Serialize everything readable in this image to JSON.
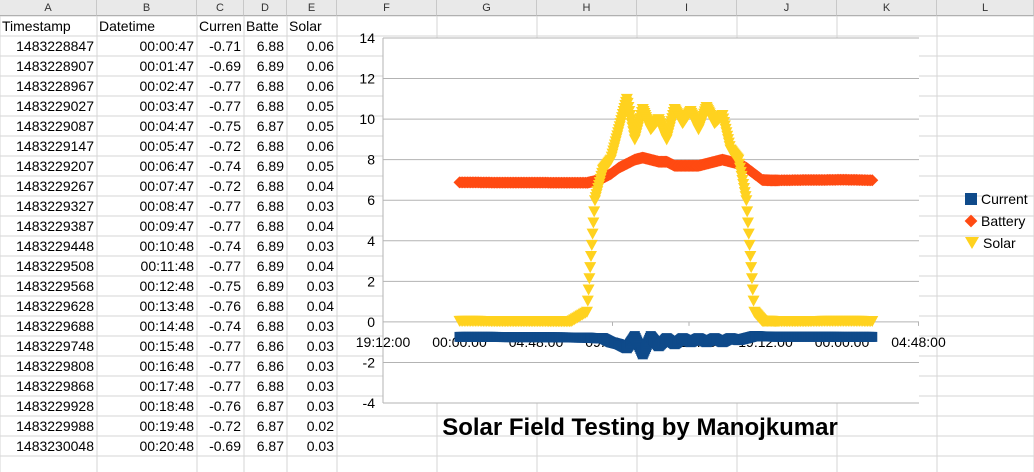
{
  "spreadsheet": {
    "column_letters": [
      "A",
      "B",
      "C",
      "D",
      "E",
      "F",
      "G",
      "H",
      "I",
      "J",
      "K",
      "L"
    ],
    "headers": [
      "Timestamp",
      "Datetime",
      "Curren",
      "Batte",
      "Solar"
    ],
    "rows": [
      [
        "1483228847",
        "00:00:47",
        "-0.71",
        "6.88",
        "0.06"
      ],
      [
        "1483228907",
        "00:01:47",
        "-0.69",
        "6.89",
        "0.06"
      ],
      [
        "1483228967",
        "00:02:47",
        "-0.77",
        "6.88",
        "0.06"
      ],
      [
        "1483229027",
        "00:03:47",
        "-0.77",
        "6.88",
        "0.05"
      ],
      [
        "1483229087",
        "00:04:47",
        "-0.75",
        "6.87",
        "0.05"
      ],
      [
        "1483229147",
        "00:05:47",
        "-0.72",
        "6.88",
        "0.06"
      ],
      [
        "1483229207",
        "00:06:47",
        "-0.74",
        "6.89",
        "0.05"
      ],
      [
        "1483229267",
        "00:07:47",
        "-0.72",
        "6.88",
        "0.04"
      ],
      [
        "1483229327",
        "00:08:47",
        "-0.77",
        "6.88",
        "0.03"
      ],
      [
        "1483229387",
        "00:09:47",
        "-0.77",
        "6.88",
        "0.04"
      ],
      [
        "1483229448",
        "00:10:48",
        "-0.74",
        "6.89",
        "0.03"
      ],
      [
        "1483229508",
        "00:11:48",
        "-0.77",
        "6.89",
        "0.04"
      ],
      [
        "1483229568",
        "00:12:48",
        "-0.75",
        "6.89",
        "0.03"
      ],
      [
        "1483229628",
        "00:13:48",
        "-0.76",
        "6.88",
        "0.04"
      ],
      [
        "1483229688",
        "00:14:48",
        "-0.74",
        "6.88",
        "0.03"
      ],
      [
        "1483229748",
        "00:15:48",
        "-0.77",
        "6.86",
        "0.03"
      ],
      [
        "1483229808",
        "00:16:48",
        "-0.77",
        "6.86",
        "0.03"
      ],
      [
        "1483229868",
        "00:17:48",
        "-0.77",
        "6.88",
        "0.03"
      ],
      [
        "1483229928",
        "00:18:48",
        "-0.76",
        "6.87",
        "0.03"
      ],
      [
        "1483229988",
        "00:19:48",
        "-0.72",
        "6.87",
        "0.02"
      ],
      [
        "1483230048",
        "00:20:48",
        "-0.69",
        "6.87",
        "0.03"
      ]
    ]
  },
  "colors": {
    "current": "#0f4a8a",
    "battery": "#ff4a12",
    "solar": "#ffd21f",
    "axis": "#b3b3b3",
    "grid": "#b3b3b3"
  },
  "chart_data": {
    "type": "scatter",
    "title": "Solar Field Testing by Manojkumar",
    "xlabel": "",
    "ylabel": "",
    "ylim": [
      -4,
      14
    ],
    "y_ticks": [
      "14",
      "12",
      "10",
      "8",
      "6",
      "4",
      "2",
      "0",
      "-2",
      "-4"
    ],
    "x_ticks": [
      "19:12:00",
      "00:00:00",
      "04:48:00",
      "09:36:00",
      "14:24:00",
      "19:12:00",
      "00:00:00",
      "04:48:00"
    ],
    "grid": "horizontal",
    "legend_position": "right",
    "series": [
      {
        "name": "Current",
        "marker": "square",
        "x_hours": [
          0.0,
          1,
          2,
          3,
          4,
          5,
          6,
          7,
          8,
          8.5,
          9,
          9.5,
          10,
          10.5,
          11,
          11.5,
          12,
          12.5,
          13,
          13.5,
          14,
          14.5,
          15,
          15.5,
          16,
          16.5,
          17,
          17.5,
          18,
          18.5,
          19,
          19.5,
          20,
          21,
          22,
          23,
          24,
          25,
          26
        ],
        "values": [
          -0.74,
          -0.74,
          -0.74,
          -0.75,
          -0.75,
          -0.75,
          -0.76,
          -0.77,
          -0.78,
          -0.8,
          -0.8,
          -1.0,
          -1.1,
          -1.3,
          -0.7,
          -1.6,
          -0.7,
          -1.2,
          -0.8,
          -1.1,
          -0.8,
          -1.0,
          -0.8,
          -1.0,
          -0.8,
          -1.0,
          -0.8,
          -0.9,
          -0.8,
          -0.7,
          -0.72,
          -0.72,
          -0.73,
          -0.73,
          -0.73,
          -0.73,
          -0.74,
          -0.74,
          -0.74
        ]
      },
      {
        "name": "Battery",
        "marker": "diamond",
        "x_hours": [
          0.0,
          1,
          2,
          3,
          4,
          5,
          6,
          7,
          8,
          8.5,
          9,
          9.5,
          10,
          10.5,
          11,
          11.5,
          12,
          12.5,
          13,
          13.5,
          14,
          14.5,
          15,
          15.5,
          16,
          16.5,
          17,
          17.5,
          18,
          18.5,
          19,
          19.5,
          20,
          21,
          22,
          23,
          24,
          25,
          26
        ],
        "values": [
          6.88,
          6.88,
          6.87,
          6.87,
          6.87,
          6.87,
          6.86,
          6.86,
          6.86,
          6.95,
          7.1,
          7.3,
          7.6,
          7.8,
          8.0,
          8.1,
          8.0,
          7.9,
          7.9,
          7.7,
          7.7,
          7.7,
          7.7,
          7.8,
          7.9,
          8.0,
          7.9,
          7.8,
          7.6,
          7.3,
          7.0,
          6.98,
          6.98,
          6.99,
          7.0,
          7.0,
          7.01,
          7.0,
          6.98
        ]
      },
      {
        "name": "Solar",
        "marker": "triangle",
        "x_hours": [
          0.0,
          1,
          2,
          3,
          4,
          5,
          6,
          7,
          8,
          8.5,
          9,
          9.5,
          10,
          10.5,
          11,
          11.5,
          12,
          12.5,
          13,
          13.5,
          14,
          14.5,
          15,
          15.5,
          16,
          16.5,
          17,
          17.5,
          18,
          18.5,
          19,
          19.5,
          20,
          21,
          22,
          23,
          24,
          25,
          26
        ],
        "values": [
          0.05,
          0.05,
          0.04,
          0.04,
          0.04,
          0.04,
          0.03,
          0.03,
          0.5,
          6.0,
          7.5,
          8.0,
          9.5,
          11.0,
          9.0,
          10.5,
          9.5,
          10.0,
          9.0,
          10.5,
          9.8,
          10.4,
          9.5,
          10.6,
          9.8,
          10.2,
          8.5,
          8.0,
          6.0,
          0.5,
          0.05,
          0.05,
          0.04,
          0.04,
          0.04,
          0.05,
          0.05,
          0.05,
          0.04
        ]
      }
    ]
  }
}
